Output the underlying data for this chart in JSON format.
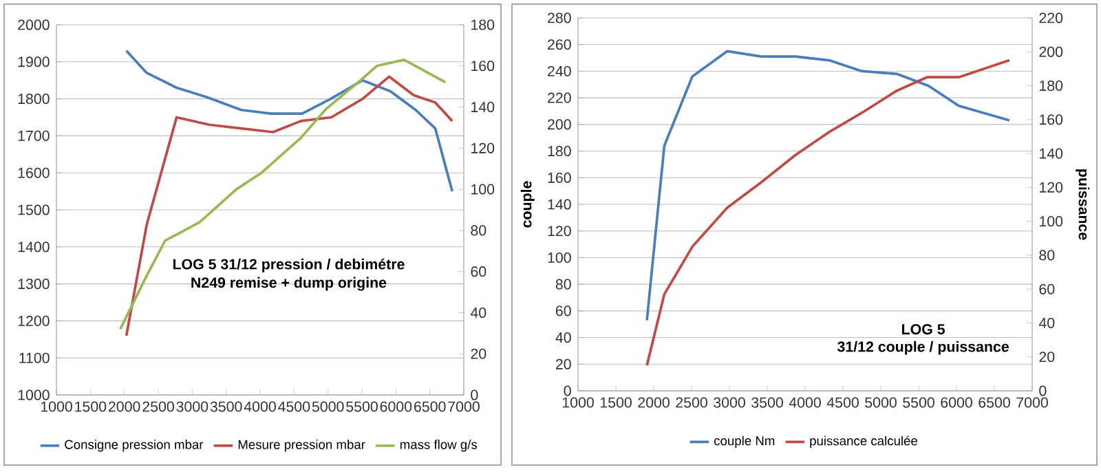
{
  "chart_data": [
    {
      "type": "line",
      "annotations": [
        "LOG 5 31/12  pression / debimétre",
        "N249 remise + dump origine"
      ],
      "xlim": [
        1000,
        7000
      ],
      "xticks": [
        1000,
        1500,
        2000,
        2500,
        3000,
        3500,
        4000,
        4500,
        5000,
        5500,
        6000,
        6500,
        7000
      ],
      "ylim": [
        1000,
        2000
      ],
      "yticks": [
        1000,
        1100,
        1200,
        1300,
        1400,
        1500,
        1600,
        1700,
        1800,
        1900,
        2000
      ],
      "y2lim": [
        0,
        180
      ],
      "y2ticks": [
        0,
        20,
        40,
        60,
        80,
        100,
        120,
        140,
        160,
        180
      ],
      "grid": "y",
      "legend": "bottom",
      "marker": "none",
      "line_style": "solid",
      "series": [
        {
          "name": "Consigne pression mbar",
          "color": "#4a7ebb",
          "x": [
            2030,
            2330,
            2770,
            3210,
            3720,
            4160,
            4620,
            5040,
            5510,
            5920,
            6290,
            6580,
            6830
          ],
          "values": [
            1930,
            1870,
            1830,
            1805,
            1770,
            1760,
            1760,
            1800,
            1850,
            1820,
            1770,
            1720,
            1550
          ]
        },
        {
          "name": "Mesure  pression mbar",
          "color": "#be4b48",
          "x": [
            2030,
            2330,
            2770,
            3250,
            3720,
            4190,
            4600,
            5050,
            5510,
            5900,
            6260,
            6580,
            6830
          ],
          "values": [
            1160,
            1460,
            1750,
            1730,
            1720,
            1710,
            1740,
            1750,
            1800,
            1860,
            1810,
            1790,
            1740
          ]
        },
        {
          "name": "mass flow g/s",
          "color": "#98b954",
          "axis": "y2",
          "x": [
            1940,
            2330,
            2600,
            3110,
            3650,
            4020,
            4600,
            4970,
            5480,
            5720,
            6120,
            6730
          ],
          "values": [
            32,
            58,
            75,
            84,
            100,
            108,
            125,
            139,
            153,
            160,
            163,
            152
          ]
        }
      ]
    },
    {
      "type": "line",
      "annotations": [
        "LOG  5",
        "31/12  couple / puissance"
      ],
      "ylabel": "couple",
      "y2label": "puissance",
      "xlim": [
        1000,
        7000
      ],
      "xticks": [
        1000,
        1500,
        2000,
        2500,
        3000,
        3500,
        4000,
        4500,
        5000,
        5500,
        6000,
        6500,
        7000
      ],
      "ylim": [
        0,
        280
      ],
      "yticks": [
        0,
        20,
        40,
        60,
        80,
        100,
        120,
        140,
        160,
        180,
        200,
        220,
        240,
        260,
        280
      ],
      "y2lim": [
        0,
        220
      ],
      "y2ticks": [
        0,
        20,
        40,
        60,
        80,
        100,
        120,
        140,
        160,
        180,
        200,
        220
      ],
      "grid": "y",
      "legend": "bottom",
      "marker": "none",
      "line_style": "solid",
      "series": [
        {
          "name": "couple Nm",
          "color": "#4a7ebb",
          "x": [
            1910,
            2140,
            2510,
            2970,
            3420,
            3870,
            4330,
            4750,
            5210,
            5630,
            6030,
            6700
          ],
          "values": [
            53,
            184,
            236,
            255,
            251,
            251,
            248,
            240,
            238,
            229,
            214,
            203
          ]
        },
        {
          "name": "puissance calculée",
          "color": "#be4b48",
          "axis": "y2",
          "x": [
            1910,
            2140,
            2510,
            2970,
            3420,
            3870,
            4330,
            4750,
            5210,
            5610,
            6030,
            6700
          ],
          "values": [
            15,
            57,
            85,
            108,
            123,
            139,
            153,
            164,
            177,
            185,
            185,
            195
          ]
        }
      ]
    }
  ]
}
